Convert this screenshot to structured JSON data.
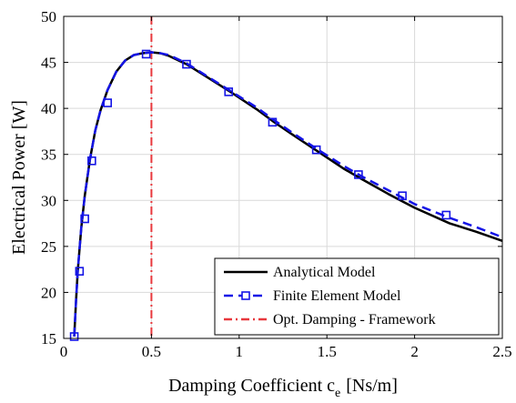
{
  "chart_data": {
    "type": "line",
    "title": "",
    "xlabel_main": "Damping Coefficient c",
    "xlabel_sub": "e",
    "xlabel_unit": "[Ns/m]",
    "ylabel": "Electrical Power [W]",
    "xlim": [
      0,
      2.5
    ],
    "ylim": [
      15,
      50
    ],
    "x_ticks": [
      0,
      0.5,
      1,
      1.5,
      2,
      2.5
    ],
    "x_tick_labels": [
      "0",
      "0.5",
      "1",
      "1.5",
      "2",
      "2.5"
    ],
    "y_ticks": [
      15,
      20,
      25,
      30,
      35,
      40,
      45,
      50
    ],
    "y_tick_labels": [
      "15",
      "20",
      "25",
      "30",
      "35",
      "40",
      "45",
      "50"
    ],
    "grid": true,
    "legend_position": "bottom-right",
    "series": [
      {
        "name": "Analytical  Model",
        "color": "#000000",
        "style": "solid",
        "x": [
          0.06,
          0.07,
          0.08,
          0.1,
          0.12,
          0.15,
          0.18,
          0.21,
          0.25,
          0.3,
          0.35,
          0.4,
          0.45,
          0.5,
          0.55,
          0.6,
          0.7,
          0.8,
          0.95,
          1.1,
          1.2,
          1.3,
          1.45,
          1.6,
          1.7,
          1.85,
          2.0,
          2.2,
          2.35,
          2.5
        ],
        "y": [
          15.2,
          19.0,
          22.3,
          27.0,
          30.5,
          34.5,
          37.6,
          39.8,
          42.0,
          44.0,
          45.2,
          45.8,
          46.0,
          46.1,
          46.0,
          45.7,
          44.8,
          43.6,
          41.8,
          39.9,
          38.5,
          37.2,
          35.3,
          33.4,
          32.3,
          30.7,
          29.2,
          27.5,
          26.6,
          25.6
        ]
      },
      {
        "name": "Finite Element Model",
        "color": "#1414e6",
        "style": "dashed",
        "marker": "square",
        "x": [
          0.06,
          0.07,
          0.08,
          0.1,
          0.12,
          0.15,
          0.18,
          0.21,
          0.25,
          0.3,
          0.35,
          0.4,
          0.45,
          0.5,
          0.55,
          0.6,
          0.7,
          0.8,
          0.95,
          1.1,
          1.2,
          1.3,
          1.45,
          1.6,
          1.7,
          1.85,
          2.0,
          2.2,
          2.35,
          2.5
        ],
        "y": [
          15.2,
          19.0,
          22.3,
          27.0,
          30.5,
          34.5,
          37.6,
          39.8,
          42.0,
          44.0,
          45.2,
          45.8,
          46.0,
          46.1,
          46.0,
          45.8,
          44.9,
          43.7,
          41.9,
          40.1,
          38.7,
          37.4,
          35.5,
          33.7,
          32.6,
          31.1,
          29.6,
          28.1,
          27.1,
          26.0
        ],
        "marker_x": [
          0.06,
          0.09,
          0.12,
          0.16,
          0.25,
          0.47,
          0.7,
          0.94,
          1.19,
          1.44,
          1.68,
          1.93,
          2.18
        ],
        "marker_y": [
          15.2,
          22.3,
          28.0,
          34.3,
          40.6,
          45.9,
          44.8,
          41.8,
          38.5,
          35.5,
          32.8,
          30.5,
          28.4
        ]
      },
      {
        "name": "Opt. Damping - Framework",
        "color": "#e8383d",
        "style": "dashdot",
        "vertical_x": 0.5
      }
    ]
  }
}
